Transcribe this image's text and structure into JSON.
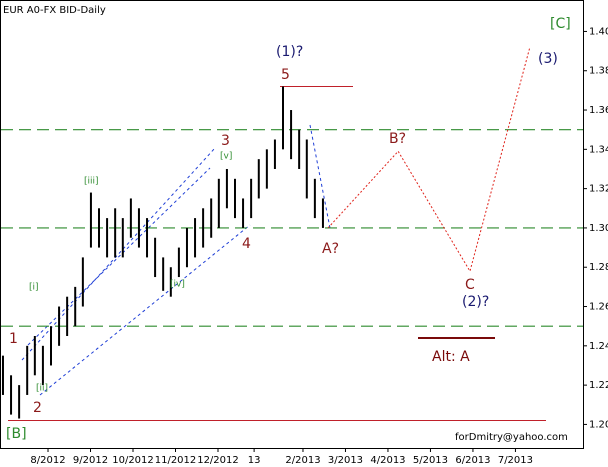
{
  "chart_data": {
    "type": "ohlc",
    "title": "EUR A0-FX BID-Daily",
    "x": [
      -1.06,
      -0.87,
      -0.68,
      -0.49,
      -0.31,
      -0.12,
      0.07,
      0.26,
      0.45,
      0.64,
      0.82,
      1.01,
      1.2,
      1.39,
      1.58,
      1.76,
      1.95,
      2.14,
      2.33,
      2.52,
      2.71,
      2.89,
      3.08,
      3.27,
      3.46,
      3.65,
      3.84,
      4.02,
      4.21,
      4.4,
      4.59,
      4.78,
      4.96,
      5.15,
      5.34,
      5.53,
      5.72,
      5.91,
      6.09,
      6.28,
      6.47
    ],
    "high": [
      1.235,
      1.225,
      1.22,
      1.24,
      1.245,
      1.24,
      1.25,
      1.26,
      1.265,
      1.27,
      1.285,
      1.318,
      1.31,
      1.305,
      1.31,
      1.305,
      1.315,
      1.31,
      1.305,
      1.295,
      1.285,
      1.28,
      1.29,
      1.3,
      1.305,
      1.31,
      1.315,
      1.325,
      1.33,
      1.325,
      1.315,
      1.325,
      1.335,
      1.34,
      1.345,
      1.372,
      1.36,
      1.35,
      1.345,
      1.325,
      1.315
    ],
    "low": [
      1.215,
      1.205,
      1.203,
      1.215,
      1.225,
      1.22,
      1.23,
      1.24,
      1.245,
      1.25,
      1.26,
      1.29,
      1.29,
      1.285,
      1.285,
      1.285,
      1.295,
      1.29,
      1.285,
      1.275,
      1.268,
      1.265,
      1.275,
      1.28,
      1.285,
      1.29,
      1.295,
      1.3,
      1.31,
      1.305,
      1.3,
      1.305,
      1.315,
      1.32,
      1.33,
      1.34,
      1.335,
      1.33,
      1.315,
      1.305,
      1.3
    ],
    "color": "#000000",
    "projection": {
      "x": [
        6.59,
        8.24,
        9.93,
        11.34
      ],
      "values": [
        1.3,
        1.339,
        1.278,
        1.392
      ],
      "color": "#e0231b"
    },
    "hlines": [
      {
        "value": 1.35,
        "color": "#2e8b2e"
      },
      {
        "value": 1.3,
        "color": "#2e8b2e"
      },
      {
        "value": 1.25,
        "color": "#2e8b2e"
      }
    ],
    "levels": [
      {
        "value": 1.372,
        "color": "#c0202a"
      },
      {
        "value": 1.202,
        "color": "#c0202a"
      },
      {
        "value": 1.244,
        "color": "#7a0a0a"
      }
    ],
    "xlim": [
      -1.13,
      12.59
    ],
    "ylim": [
      1.188,
      1.416
    ],
    "xticks": [
      {
        "value": 0,
        "label": "8/2012"
      },
      {
        "value": 1,
        "label": "9/2012"
      },
      {
        "value": 2,
        "label": "10/2012"
      },
      {
        "value": 3,
        "label": "11/2012"
      },
      {
        "value": 4,
        "label": "12/2012"
      },
      {
        "value": 4.85,
        "label": "13"
      },
      {
        "value": 6,
        "label": "2/2013"
      },
      {
        "value": 7,
        "label": "3/2013"
      },
      {
        "value": 8,
        "label": "4/2013"
      },
      {
        "value": 9,
        "label": "5/2013"
      },
      {
        "value": 10,
        "label": "6/2013"
      },
      {
        "value": 11,
        "label": "7/2013"
      }
    ],
    "yticks": [
      {
        "value": 1.2,
        "label": "1.20"
      },
      {
        "value": 1.22,
        "label": "1.22"
      },
      {
        "value": 1.24,
        "label": "1.24"
      },
      {
        "value": 1.26,
        "label": "1.26"
      },
      {
        "value": 1.28,
        "label": "1.28"
      },
      {
        "value": 1.3,
        "label": "1.30"
      },
      {
        "value": 1.32,
        "label": "1.32"
      },
      {
        "value": 1.34,
        "label": "1.34"
      },
      {
        "value": 1.36,
        "label": "1.36"
      },
      {
        "value": 1.38,
        "label": "1.38"
      },
      {
        "value": 1.4,
        "label": "1.40"
      }
    ],
    "annotations": [
      "[C]",
      "(3)",
      "(1)?",
      "5",
      "3",
      "[v]",
      "[iii]",
      "[i]",
      "1",
      "[ii]",
      "2",
      "[B]",
      "4",
      "[iv]",
      "A?",
      "B?",
      "C",
      "(2)?",
      "Alt:  A",
      "forDmitry@yahoo.com"
    ]
  }
}
